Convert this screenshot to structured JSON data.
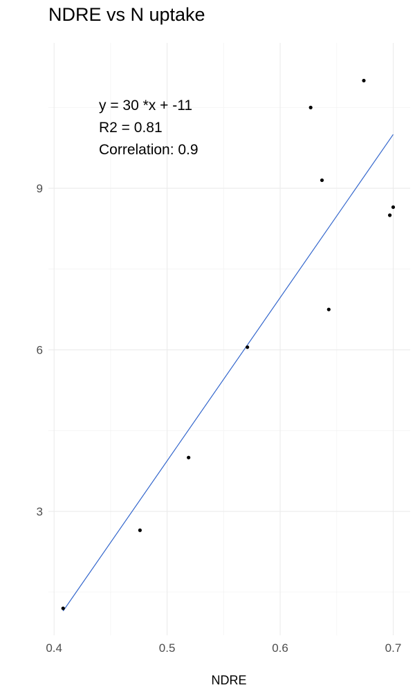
{
  "chart_data": {
    "type": "scatter",
    "title": "NDRE vs N uptake",
    "xlabel": "NDRE",
    "ylabel": "",
    "xlim": [
      0.395,
      0.715
    ],
    "ylim": [
      0.7,
      11.7
    ],
    "x_ticks": [
      0.4,
      0.5,
      0.6,
      0.7
    ],
    "x_tick_labels": [
      "0.4",
      "0.5",
      "0.6",
      "0.7"
    ],
    "y_ticks": [
      3,
      6,
      9
    ],
    "y_tick_labels": [
      "3",
      "6",
      "9"
    ],
    "grid": true,
    "points": [
      {
        "x": 0.408,
        "y": 1.2
      },
      {
        "x": 0.476,
        "y": 2.65
      },
      {
        "x": 0.519,
        "y": 4.0
      },
      {
        "x": 0.571,
        "y": 6.05
      },
      {
        "x": 0.627,
        "y": 10.5
      },
      {
        "x": 0.637,
        "y": 9.15
      },
      {
        "x": 0.643,
        "y": 6.75
      },
      {
        "x": 0.674,
        "y": 11.0
      },
      {
        "x": 0.697,
        "y": 8.5
      },
      {
        "x": 0.7,
        "y": 8.65
      }
    ],
    "point_color": "#000000",
    "fit_line": {
      "x": [
        0.408,
        0.7
      ],
      "y": [
        1.15,
        10.0
      ],
      "color": "#3366cc"
    },
    "annotations": [
      "y = 30 *x + -11",
      "R2 = 0.81",
      "Correlation: 0.9"
    ]
  }
}
